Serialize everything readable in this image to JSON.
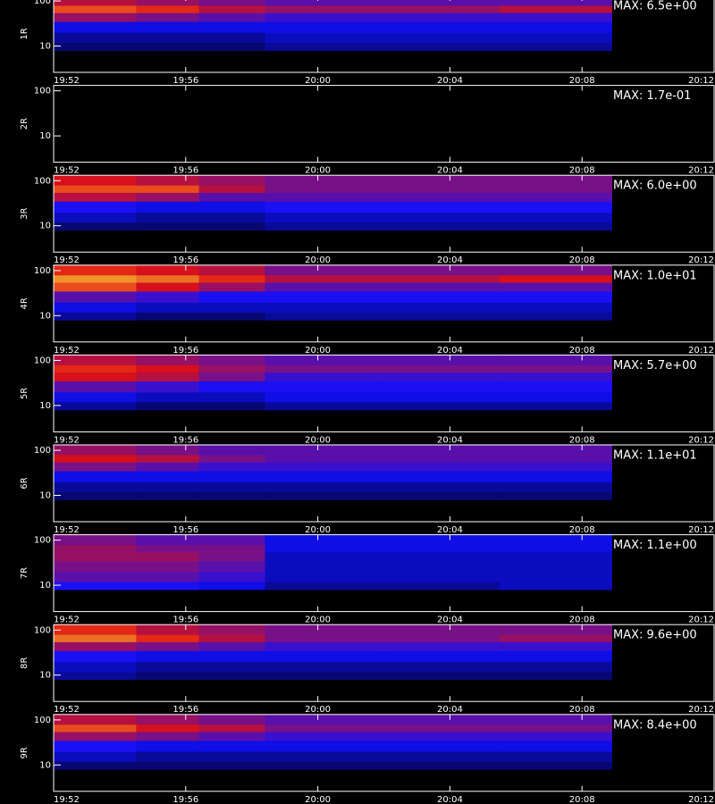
{
  "chart_data": [
    {
      "type": "heatmap",
      "ylabel": "1R",
      "annotation": "MAX: 6.5e+00",
      "log_y": true,
      "ylim": [
        2.6,
        132
      ],
      "yticks": [
        100,
        10
      ],
      "xlim": [
        1192,
        1212
      ],
      "xticks": [
        {
          "value": 1192,
          "label": "19:52"
        },
        {
          "value": 1196,
          "label": "19:56"
        },
        {
          "value": 1200,
          "label": "20:00"
        },
        {
          "value": 1204,
          "label": "20:04"
        },
        {
          "value": 1208,
          "label": "20:08"
        },
        {
          "value": 1212,
          "label": "20:12"
        }
      ],
      "colorscale": [
        "#000000",
        "#1010ff",
        "#e01010",
        "#ffff40"
      ],
      "zlim": [
        0,
        1
      ],
      "x_edges": [
        1192,
        1194.5,
        1196.4,
        1198.4,
        1202,
        1205.5,
        1208.9
      ],
      "y_edges": [
        8,
        12,
        20,
        35,
        55,
        80,
        132
      ],
      "z": [
        [
          0.15,
          0.15,
          0.15,
          0.2,
          0.2,
          0.2
        ],
        [
          0.2,
          0.2,
          0.2,
          0.25,
          0.25,
          0.25
        ],
        [
          0.3,
          0.3,
          0.3,
          0.3,
          0.3,
          0.3
        ],
        [
          0.55,
          0.5,
          0.45,
          0.4,
          0.4,
          0.4
        ],
        [
          0.75,
          0.7,
          0.6,
          0.55,
          0.55,
          0.6
        ],
        [
          0.6,
          0.55,
          0.5,
          0.45,
          0.45,
          0.45
        ]
      ]
    },
    {
      "type": "heatmap",
      "ylabel": "2R",
      "annotation": "MAX: 1.7e-01",
      "log_y": true,
      "ylim": [
        2.6,
        132
      ],
      "yticks": [
        100,
        10
      ],
      "xlim": [
        1192,
        1212
      ],
      "xticks": [
        {
          "value": 1192,
          "label": "19:52"
        },
        {
          "value": 1196,
          "label": "19:56"
        },
        {
          "value": 1200,
          "label": "20:00"
        },
        {
          "value": 1204,
          "label": "20:04"
        },
        {
          "value": 1208,
          "label": "20:08"
        },
        {
          "value": 1212,
          "label": "20:12"
        }
      ],
      "colorscale": [
        "#000000",
        "#1010ff",
        "#e01010",
        "#ffff40"
      ],
      "zlim": [
        0,
        1
      ],
      "x_edges": [
        1192,
        1194.5,
        1196.4,
        1198.4,
        1202,
        1205.5,
        1208.9
      ],
      "y_edges": [
        8,
        12,
        20,
        35,
        55,
        80,
        132
      ],
      "z": [
        [
          0,
          0,
          0,
          0,
          0,
          0
        ],
        [
          0,
          0,
          0,
          0,
          0,
          0
        ],
        [
          0,
          0,
          0,
          0,
          0,
          0
        ],
        [
          0,
          0,
          0,
          0,
          0,
          0
        ],
        [
          0,
          0,
          0,
          0,
          0,
          0
        ],
        [
          0,
          0,
          0,
          0,
          0,
          0
        ]
      ]
    },
    {
      "type": "heatmap",
      "ylabel": "3R",
      "annotation": "MAX: 6.0e+00",
      "log_y": true,
      "ylim": [
        2.6,
        132
      ],
      "yticks": [
        100,
        10
      ],
      "xlim": [
        1192,
        1212
      ],
      "xticks": [
        {
          "value": 1192,
          "label": "19:52"
        },
        {
          "value": 1196,
          "label": "19:56"
        },
        {
          "value": 1200,
          "label": "20:00"
        },
        {
          "value": 1204,
          "label": "20:04"
        },
        {
          "value": 1208,
          "label": "20:08"
        },
        {
          "value": 1212,
          "label": "20:12"
        }
      ],
      "colorscale": [
        "#000000",
        "#1010ff",
        "#e01010",
        "#ffff40"
      ],
      "zlim": [
        0,
        1
      ],
      "x_edges": [
        1192,
        1194.5,
        1196.4,
        1198.4,
        1202,
        1205.5,
        1208.9
      ],
      "y_edges": [
        8,
        12,
        20,
        35,
        55,
        80,
        132
      ],
      "z": [
        [
          0.15,
          0.15,
          0.15,
          0.2,
          0.2,
          0.2
        ],
        [
          0.25,
          0.2,
          0.2,
          0.25,
          0.25,
          0.25
        ],
        [
          0.35,
          0.3,
          0.3,
          0.35,
          0.35,
          0.35
        ],
        [
          0.6,
          0.55,
          0.45,
          0.45,
          0.45,
          0.45
        ],
        [
          0.75,
          0.75,
          0.6,
          0.5,
          0.5,
          0.5
        ],
        [
          0.65,
          0.6,
          0.55,
          0.5,
          0.5,
          0.5
        ]
      ]
    },
    {
      "type": "heatmap",
      "ylabel": "4R",
      "annotation": "MAX: 1.0e+01",
      "log_y": true,
      "ylim": [
        2.6,
        132
      ],
      "yticks": [
        100,
        10
      ],
      "xlim": [
        1192,
        1212
      ],
      "xticks": [
        {
          "value": 1192,
          "label": "19:52"
        },
        {
          "value": 1196,
          "label": "19:56"
        },
        {
          "value": 1200,
          "label": "20:00"
        },
        {
          "value": 1204,
          "label": "20:04"
        },
        {
          "value": 1208,
          "label": "20:08"
        },
        {
          "value": 1212,
          "label": "20:12"
        }
      ],
      "colorscale": [
        "#000000",
        "#1010ff",
        "#e01010",
        "#ffff40"
      ],
      "zlim": [
        0,
        1
      ],
      "x_edges": [
        1192,
        1194.5,
        1196.4,
        1198.4,
        1202,
        1205.5,
        1208.9
      ],
      "y_edges": [
        8,
        12,
        20,
        35,
        55,
        80,
        132
      ],
      "z": [
        [
          0.2,
          0.15,
          0.15,
          0.2,
          0.2,
          0.2
        ],
        [
          0.3,
          0.25,
          0.25,
          0.25,
          0.25,
          0.25
        ],
        [
          0.45,
          0.4,
          0.35,
          0.35,
          0.35,
          0.35
        ],
        [
          0.75,
          0.65,
          0.55,
          0.45,
          0.45,
          0.45
        ],
        [
          0.85,
          0.8,
          0.7,
          0.6,
          0.6,
          0.65
        ],
        [
          0.7,
          0.65,
          0.6,
          0.5,
          0.5,
          0.5
        ]
      ]
    },
    {
      "type": "heatmap",
      "ylabel": "5R",
      "annotation": "MAX: 5.7e+00",
      "log_y": true,
      "ylim": [
        2.6,
        132
      ],
      "yticks": [
        100,
        10
      ],
      "xlim": [
        1192,
        1212
      ],
      "xticks": [
        {
          "value": 1192,
          "label": "19:52"
        },
        {
          "value": 1196,
          "label": "19:56"
        },
        {
          "value": 1200,
          "label": "20:00"
        },
        {
          "value": 1204,
          "label": "20:04"
        },
        {
          "value": 1208,
          "label": "20:08"
        },
        {
          "value": 1212,
          "label": "20:12"
        }
      ],
      "colorscale": [
        "#000000",
        "#1010ff",
        "#e01010",
        "#ffff40"
      ],
      "zlim": [
        0,
        1
      ],
      "x_edges": [
        1192,
        1194.5,
        1196.4,
        1198.4,
        1202,
        1205.5,
        1208.9
      ],
      "y_edges": [
        8,
        12,
        20,
        35,
        55,
        80,
        132
      ],
      "z": [
        [
          0.2,
          0.15,
          0.15,
          0.2,
          0.2,
          0.2
        ],
        [
          0.3,
          0.25,
          0.25,
          0.3,
          0.3,
          0.3
        ],
        [
          0.45,
          0.4,
          0.35,
          0.35,
          0.35,
          0.35
        ],
        [
          0.65,
          0.6,
          0.5,
          0.4,
          0.4,
          0.4
        ],
        [
          0.7,
          0.65,
          0.55,
          0.5,
          0.5,
          0.5
        ],
        [
          0.6,
          0.55,
          0.5,
          0.45,
          0.45,
          0.45
        ]
      ]
    },
    {
      "type": "heatmap",
      "ylabel": "6R",
      "annotation": "MAX: 1.1e+01",
      "log_y": true,
      "ylim": [
        2.6,
        132
      ],
      "yticks": [
        100,
        10
      ],
      "xlim": [
        1192,
        1212
      ],
      "xticks": [
        {
          "value": 1192,
          "label": "19:52"
        },
        {
          "value": 1196,
          "label": "19:56"
        },
        {
          "value": 1200,
          "label": "20:00"
        },
        {
          "value": 1204,
          "label": "20:04"
        },
        {
          "value": 1208,
          "label": "20:08"
        },
        {
          "value": 1212,
          "label": "20:12"
        }
      ],
      "colorscale": [
        "#000000",
        "#1010ff",
        "#e01010",
        "#ffff40"
      ],
      "zlim": [
        0,
        1
      ],
      "x_edges": [
        1192,
        1194.5,
        1196.4,
        1198.4,
        1202,
        1205.5,
        1208.9
      ],
      "y_edges": [
        8,
        12,
        20,
        35,
        55,
        80,
        132
      ],
      "z": [
        [
          0.15,
          0.15,
          0.15,
          0.15,
          0.15,
          0.15
        ],
        [
          0.2,
          0.2,
          0.2,
          0.2,
          0.2,
          0.2
        ],
        [
          0.3,
          0.3,
          0.3,
          0.3,
          0.3,
          0.3
        ],
        [
          0.5,
          0.45,
          0.4,
          0.4,
          0.4,
          0.4
        ],
        [
          0.65,
          0.6,
          0.5,
          0.45,
          0.45,
          0.45
        ],
        [
          0.55,
          0.5,
          0.45,
          0.45,
          0.45,
          0.45
        ]
      ]
    },
    {
      "type": "heatmap",
      "ylabel": "7R",
      "annotation": "MAX: 1.1e+00",
      "log_y": true,
      "ylim": [
        2.6,
        132
      ],
      "yticks": [
        100,
        10
      ],
      "xlim": [
        1192,
        1212
      ],
      "xticks": [
        {
          "value": 1192,
          "label": "19:52"
        },
        {
          "value": 1196,
          "label": "19:56"
        },
        {
          "value": 1200,
          "label": "20:00"
        },
        {
          "value": 1204,
          "label": "20:04"
        },
        {
          "value": 1208,
          "label": "20:08"
        },
        {
          "value": 1212,
          "label": "20:12"
        }
      ],
      "colorscale": [
        "#000000",
        "#1010ff",
        "#e01010",
        "#ffff40"
      ],
      "zlim": [
        0,
        1
      ],
      "x_edges": [
        1192,
        1194.5,
        1196.4,
        1198.4,
        1202,
        1205.5,
        1208.9
      ],
      "y_edges": [
        8,
        12,
        20,
        35,
        55,
        80,
        132
      ],
      "z": [
        [
          0.35,
          0.35,
          0.3,
          0.2,
          0.2,
          0.25
        ],
        [
          0.45,
          0.45,
          0.4,
          0.25,
          0.25,
          0.25
        ],
        [
          0.5,
          0.5,
          0.45,
          0.25,
          0.25,
          0.25
        ],
        [
          0.55,
          0.55,
          0.5,
          0.25,
          0.25,
          0.25
        ],
        [
          0.55,
          0.5,
          0.5,
          0.3,
          0.3,
          0.3
        ],
        [
          0.5,
          0.45,
          0.45,
          0.3,
          0.3,
          0.3
        ]
      ]
    },
    {
      "type": "heatmap",
      "ylabel": "8R",
      "annotation": "MAX: 9.6e+00",
      "log_y": true,
      "ylim": [
        2.6,
        132
      ],
      "yticks": [
        100,
        10
      ],
      "xlim": [
        1192,
        1212
      ],
      "xticks": [
        {
          "value": 1192,
          "label": "19:52"
        },
        {
          "value": 1196,
          "label": "19:56"
        },
        {
          "value": 1200,
          "label": "20:00"
        },
        {
          "value": 1204,
          "label": "20:04"
        },
        {
          "value": 1208,
          "label": "20:08"
        },
        {
          "value": 1212,
          "label": "20:12"
        }
      ],
      "colorscale": [
        "#000000",
        "#1010ff",
        "#e01010",
        "#ffff40"
      ],
      "zlim": [
        0,
        1
      ],
      "x_edges": [
        1192,
        1194.5,
        1196.4,
        1198.4,
        1202,
        1205.5,
        1208.9
      ],
      "y_edges": [
        8,
        12,
        20,
        35,
        55,
        80,
        132
      ],
      "z": [
        [
          0.2,
          0.15,
          0.15,
          0.15,
          0.15,
          0.15
        ],
        [
          0.25,
          0.2,
          0.2,
          0.2,
          0.2,
          0.2
        ],
        [
          0.35,
          0.3,
          0.3,
          0.3,
          0.3,
          0.3
        ],
        [
          0.55,
          0.5,
          0.45,
          0.4,
          0.4,
          0.4
        ],
        [
          0.8,
          0.7,
          0.6,
          0.5,
          0.5,
          0.55
        ],
        [
          0.7,
          0.6,
          0.55,
          0.5,
          0.5,
          0.5
        ]
      ]
    },
    {
      "type": "heatmap",
      "ylabel": "9R",
      "annotation": "MAX: 8.4e+00",
      "log_y": true,
      "ylim": [
        2.6,
        132
      ],
      "yticks": [
        100,
        10
      ],
      "xlim": [
        1192,
        1212
      ],
      "xticks": [
        {
          "value": 1192,
          "label": "19:52"
        },
        {
          "value": 1196,
          "label": "19:56"
        },
        {
          "value": 1200,
          "label": "20:00"
        },
        {
          "value": 1204,
          "label": "20:04"
        },
        {
          "value": 1208,
          "label": "20:08"
        },
        {
          "value": 1212,
          "label": "20:12"
        }
      ],
      "colorscale": [
        "#000000",
        "#1010ff",
        "#e01010",
        "#ffff40"
      ],
      "zlim": [
        0,
        1
      ],
      "x_edges": [
        1192,
        1194.5,
        1196.4,
        1198.4,
        1202,
        1205.5,
        1208.9
      ],
      "y_edges": [
        8,
        12,
        20,
        35,
        55,
        80,
        132
      ],
      "z": [
        [
          0.15,
          0.15,
          0.15,
          0.15,
          0.15,
          0.15
        ],
        [
          0.25,
          0.2,
          0.2,
          0.2,
          0.2,
          0.2
        ],
        [
          0.35,
          0.3,
          0.3,
          0.3,
          0.3,
          0.3
        ],
        [
          0.55,
          0.5,
          0.45,
          0.4,
          0.4,
          0.4
        ],
        [
          0.75,
          0.65,
          0.6,
          0.5,
          0.5,
          0.5
        ],
        [
          0.6,
          0.55,
          0.5,
          0.45,
          0.45,
          0.45
        ]
      ]
    }
  ]
}
